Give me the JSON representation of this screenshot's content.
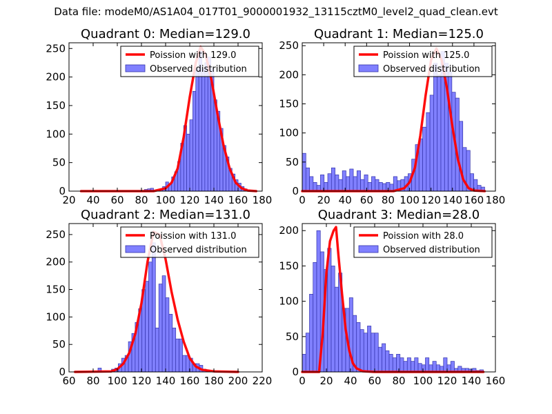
{
  "figure": {
    "suptitle": "Data file: modeM0/AS1A04_017T01_9000001932_13115cztM0_level2_quad_clean.evt"
  },
  "legend_labels": {
    "observed": "Observed distribution"
  },
  "colors": {
    "hist_fill": "#8080ff",
    "hist_edge": "#3333aa",
    "poisson_line": "#ff0000",
    "axes": "#000000"
  },
  "chart_data": [
    {
      "type": "bar",
      "title": "Quadrant 0: Median=129.0",
      "poisson_label": "Poission with 129.0",
      "legend_position": "top-right",
      "xlim": [
        20,
        180
      ],
      "ylim": [
        0,
        260
      ],
      "xticks": [
        20,
        40,
        60,
        80,
        100,
        120,
        140,
        160,
        180
      ],
      "yticks": [
        0,
        50,
        100,
        150,
        200,
        250
      ],
      "bin_width": 2.5,
      "bins": [
        [
          82.5,
          3
        ],
        [
          85,
          4
        ],
        [
          87.5,
          5
        ],
        [
          95,
          3
        ],
        [
          97.5,
          8
        ],
        [
          100,
          16
        ],
        [
          102.5,
          12
        ],
        [
          105,
          25
        ],
        [
          107.5,
          34
        ],
        [
          110,
          52
        ],
        [
          112.5,
          84
        ],
        [
          115,
          115
        ],
        [
          117.5,
          100
        ],
        [
          120,
          125
        ],
        [
          122.5,
          175
        ],
        [
          125,
          215
        ],
        [
          127.5,
          245
        ],
        [
          130,
          215
        ],
        [
          132.5,
          225
        ],
        [
          135,
          235
        ],
        [
          137.5,
          215
        ],
        [
          140,
          160
        ],
        [
          142.5,
          140
        ],
        [
          145,
          110
        ],
        [
          147.5,
          80
        ],
        [
          150,
          60
        ],
        [
          152.5,
          40
        ],
        [
          155,
          30
        ],
        [
          157.5,
          20
        ],
        [
          160,
          14
        ],
        [
          162.5,
          8
        ],
        [
          165,
          4
        ],
        [
          167.5,
          2
        ],
        [
          170,
          1
        ]
      ],
      "poisson": {
        "x": [
          30,
          90,
          100,
          105,
          110,
          115,
          120,
          125,
          129,
          133,
          138,
          143,
          148,
          153,
          158,
          163,
          168,
          175
        ],
        "y": [
          0,
          0,
          5,
          15,
          40,
          95,
          165,
          225,
          253,
          240,
          195,
          135,
          80,
          40,
          15,
          5,
          1,
          0
        ]
      }
    },
    {
      "type": "bar",
      "title": "Quadrant 1: Median=125.0",
      "poisson_label": "Poission with 125.0",
      "legend_position": "top-right",
      "xlim": [
        0,
        180
      ],
      "ylim": [
        0,
        255
      ],
      "xticks": [
        0,
        20,
        40,
        60,
        80,
        100,
        120,
        140,
        160,
        180
      ],
      "yticks": [
        0,
        50,
        100,
        150,
        200,
        250
      ],
      "bin_width": 3.4,
      "bins": [
        [
          0,
          65
        ],
        [
          3.4,
          40
        ],
        [
          6.8,
          25
        ],
        [
          10.2,
          15
        ],
        [
          13.6,
          10
        ],
        [
          17,
          28
        ],
        [
          20.4,
          15
        ],
        [
          23.8,
          30
        ],
        [
          27.2,
          40
        ],
        [
          30.6,
          28
        ],
        [
          34,
          20
        ],
        [
          37.4,
          35
        ],
        [
          40.8,
          25
        ],
        [
          44.2,
          38
        ],
        [
          47.6,
          25
        ],
        [
          51,
          35
        ],
        [
          54.4,
          20
        ],
        [
          57.8,
          28
        ],
        [
          61.2,
          15
        ],
        [
          64.6,
          25
        ],
        [
          68,
          20
        ],
        [
          71.4,
          15
        ],
        [
          74.8,
          13
        ],
        [
          78.2,
          15
        ],
        [
          81.6,
          12
        ],
        [
          85,
          25
        ],
        [
          88.4,
          18
        ],
        [
          91.8,
          20
        ],
        [
          95.2,
          25
        ],
        [
          98.6,
          30
        ],
        [
          102,
          55
        ],
        [
          105.4,
          80
        ],
        [
          108.8,
          90
        ],
        [
          112.2,
          110
        ],
        [
          115.6,
          135
        ],
        [
          119,
          165
        ],
        [
          122.4,
          220
        ],
        [
          125.8,
          200
        ],
        [
          129.2,
          240
        ],
        [
          132.6,
          220
        ],
        [
          136,
          205
        ],
        [
          139.4,
          170
        ],
        [
          142.8,
          160
        ],
        [
          146.2,
          120
        ],
        [
          149.6,
          75
        ],
        [
          153,
          70
        ],
        [
          156.4,
          30
        ],
        [
          159.8,
          20
        ],
        [
          163.2,
          10
        ],
        [
          166.6,
          7
        ]
      ],
      "poisson": {
        "x": [
          0,
          85,
          95,
          100,
          105,
          110,
          115,
          120,
          125,
          130,
          135,
          140,
          145,
          150,
          155,
          160,
          170
        ],
        "y": [
          0,
          0,
          5,
          15,
          40,
          95,
          165,
          225,
          245,
          225,
          175,
          110,
          55,
          20,
          5,
          1,
          0
        ]
      }
    },
    {
      "type": "bar",
      "title": "Quadrant 2: Median=131.0",
      "poisson_label": "Poission with 131.0",
      "legend_position": "top-right",
      "xlim": [
        60,
        220
      ],
      "ylim": [
        0,
        270
      ],
      "xticks": [
        60,
        80,
        100,
        120,
        140,
        160,
        180,
        200,
        220
      ],
      "yticks": [
        0,
        50,
        100,
        150,
        200,
        250
      ],
      "bin_width": 2.8,
      "bins": [
        [
          84,
          7
        ],
        [
          95.2,
          5
        ],
        [
          98,
          7
        ],
        [
          100.8,
          15
        ],
        [
          103.6,
          25
        ],
        [
          106.4,
          30
        ],
        [
          109.2,
          55
        ],
        [
          112,
          70
        ],
        [
          114.8,
          90
        ],
        [
          117.6,
          115
        ],
        [
          120.4,
          150
        ],
        [
          123.2,
          165
        ],
        [
          126,
          200
        ],
        [
          128.8,
          235
        ],
        [
          131.6,
          80
        ],
        [
          134.4,
          160
        ],
        [
          137.2,
          175
        ],
        [
          140,
          135
        ],
        [
          142.8,
          105
        ],
        [
          145.6,
          80
        ],
        [
          148.4,
          60
        ],
        [
          151.2,
          60
        ],
        [
          154,
          30
        ],
        [
          156.8,
          30
        ],
        [
          159.6,
          25
        ],
        [
          162.4,
          15
        ],
        [
          165.2,
          15
        ],
        [
          168,
          12
        ],
        [
          170.8,
          5
        ],
        [
          173.6,
          3
        ]
      ],
      "poisson": {
        "x": [
          65,
          95,
          100,
          105,
          110,
          115,
          120,
          125,
          130,
          135,
          140,
          145,
          150,
          155,
          160,
          165,
          170,
          180,
          200
        ],
        "y": [
          0,
          1,
          5,
          15,
          35,
          70,
          125,
          200,
          255,
          250,
          205,
          145,
          95,
          55,
          25,
          10,
          4,
          1,
          0
        ]
      }
    },
    {
      "type": "bar",
      "title": "Quadrant 3: Median=28.0",
      "poisson_label": "Poission with 28.0",
      "legend_position": "top-right",
      "xlim": [
        0,
        160
      ],
      "ylim": [
        0,
        210
      ],
      "xticks": [
        0,
        20,
        40,
        60,
        80,
        100,
        120,
        140,
        160
      ],
      "yticks": [
        0,
        50,
        100,
        150,
        200
      ],
      "bin_width": 3.0,
      "bins": [
        [
          0,
          25
        ],
        [
          3,
          55
        ],
        [
          6,
          110
        ],
        [
          9,
          155
        ],
        [
          12,
          200
        ],
        [
          15,
          170
        ],
        [
          18,
          145
        ],
        [
          21,
          175
        ],
        [
          24,
          150
        ],
        [
          27,
          120
        ],
        [
          30,
          140
        ],
        [
          33,
          90
        ],
        [
          36,
          90
        ],
        [
          39,
          105
        ],
        [
          42,
          80
        ],
        [
          45,
          70
        ],
        [
          48,
          60
        ],
        [
          51,
          55
        ],
        [
          54,
          65
        ],
        [
          57,
          55
        ],
        [
          60,
          55
        ],
        [
          63,
          35
        ],
        [
          66,
          40
        ],
        [
          69,
          30
        ],
        [
          72,
          25
        ],
        [
          75,
          20
        ],
        [
          78,
          25
        ],
        [
          81,
          20
        ],
        [
          84,
          15
        ],
        [
          87,
          20
        ],
        [
          90,
          15
        ],
        [
          93,
          20
        ],
        [
          96,
          12
        ],
        [
          99,
          10
        ],
        [
          102,
          20
        ],
        [
          105,
          10
        ],
        [
          108,
          15
        ],
        [
          111,
          10
        ],
        [
          114,
          8
        ],
        [
          117,
          20
        ],
        [
          120,
          10
        ],
        [
          123,
          15
        ],
        [
          126,
          5
        ],
        [
          129,
          8
        ],
        [
          132,
          5
        ],
        [
          135,
          5
        ],
        [
          138,
          4
        ],
        [
          141,
          5
        ],
        [
          144,
          2
        ],
        [
          147,
          3
        ]
      ],
      "poisson": {
        "x": [
          0,
          14,
          17,
          20,
          23,
          26,
          28,
          30,
          33,
          36,
          39,
          42,
          45,
          50,
          60,
          150
        ],
        "y": [
          0,
          0,
          55,
          140,
          185,
          200,
          205,
          165,
          110,
          60,
          30,
          12,
          5,
          1,
          0,
          0
        ]
      }
    }
  ]
}
